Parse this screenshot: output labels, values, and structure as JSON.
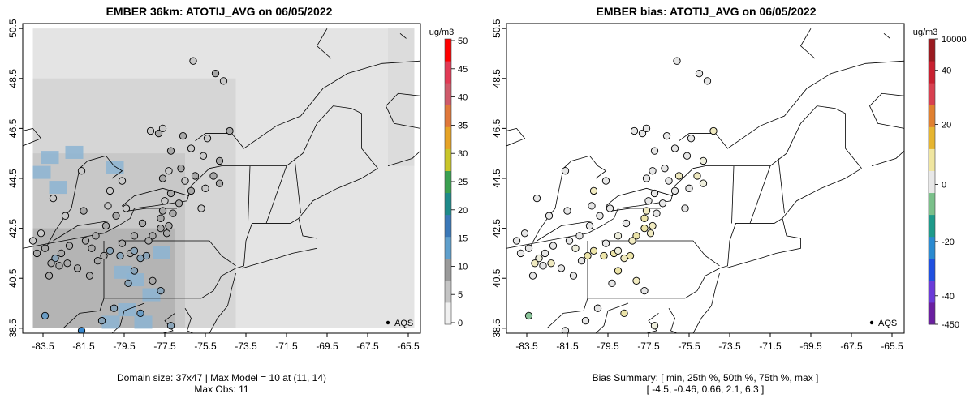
{
  "left_panel": {
    "title": "EMBER 36km: ATOTIJ_AVG on 06/05/2022",
    "caption_line1": "Domain size: 37x47 | Max Model = 10 at (11, 14)",
    "caption_line2": "Max Obs: 11",
    "legend_label": "AQS",
    "colorbar": {
      "unit": "ug/m3",
      "ticks": [
        "50",
        "45",
        "40",
        "35",
        "30",
        "25",
        "20",
        "15",
        "10",
        "5",
        "0"
      ],
      "colors": [
        "#f0f0f0",
        "#c4c4c4",
        "#9a9a9a",
        "#5f9fcc",
        "#3a78b8",
        "#1e8a8a",
        "#3aa050",
        "#c9c62a",
        "#e6a326",
        "#e0783a",
        "#cf5a6a",
        "#e23a55",
        "#ff0000"
      ]
    }
  },
  "right_panel": {
    "title": "EMBER bias: ATOTIJ_AVG on 06/05/2022",
    "caption_line1": "Bias Summary: [ min, 25th %, 50th %, 75th %, max ]",
    "caption_line2": "[ -4.5,  -0.46,  0.66,  2.1,  6.3 ]",
    "legend_label": "AQS",
    "colorbar": {
      "unit": "ug/m3",
      "ticks": [
        "10000",
        "40",
        "20",
        "0",
        "-20",
        "-40",
        "-450"
      ],
      "colors": [
        "#6a1fa0",
        "#6a3ad8",
        "#2050e0",
        "#2a8ad0",
        "#1e9a8a",
        "#7ac08a",
        "#e8e8e8",
        "#f0e6a0",
        "#e6b530",
        "#e08030",
        "#d84050",
        "#c82030",
        "#9a1a20"
      ]
    }
  },
  "axes": {
    "x_ticks": [
      "-83.5",
      "-81.5",
      "-79.5",
      "-77.5",
      "-75.5",
      "-73.5",
      "-71.5",
      "-69.5",
      "-67.5",
      "-65.5"
    ],
    "y_ticks": [
      "50.5",
      "48.5",
      "46.5",
      "44.5",
      "42.5",
      "40.5",
      "38.5"
    ]
  },
  "stations": [
    {
      "lon": -77.8,
      "lat": 46.3,
      "val": 4,
      "bias": 0.3
    },
    {
      "lon": -77.6,
      "lat": 46.5,
      "val": 3,
      "bias": 0.2
    },
    {
      "lon": -78.2,
      "lat": 46.4,
      "val": 3,
      "bias": -0.4
    },
    {
      "lon": -76.6,
      "lat": 46.2,
      "val": 4,
      "bias": 0.5
    },
    {
      "lon": -75.4,
      "lat": 46.1,
      "val": 3,
      "bias": 0.1
    },
    {
      "lon": -74.3,
      "lat": 46.4,
      "val": 4,
      "bias": 2.5
    },
    {
      "lon": -76.1,
      "lat": 49.2,
      "val": 3,
      "bias": 0.2
    },
    {
      "lon": -74.6,
      "lat": 48.4,
      "val": 3,
      "bias": -0.3
    },
    {
      "lon": -75.0,
      "lat": 48.7,
      "val": 4,
      "bias": 0.4
    },
    {
      "lon": -77.2,
      "lat": 45.6,
      "val": 4,
      "bias": 0.8
    },
    {
      "lon": -76.2,
      "lat": 45.7,
      "val": 3,
      "bias": 0.1
    },
    {
      "lon": -75.6,
      "lat": 45.4,
      "val": 3,
      "bias": 0.6
    },
    {
      "lon": -74.8,
      "lat": 45.2,
      "val": 4,
      "bias": 1.9
    },
    {
      "lon": -76.7,
      "lat": 44.9,
      "val": 4,
      "bias": -0.2
    },
    {
      "lon": -77.3,
      "lat": 44.8,
      "val": 3,
      "bias": 0.3
    },
    {
      "lon": -76.0,
      "lat": 44.6,
      "val": 5,
      "bias": 2.4
    },
    {
      "lon": -75.1,
      "lat": 44.6,
      "val": 4,
      "bias": 2.9
    },
    {
      "lon": -74.8,
      "lat": 44.3,
      "val": 4,
      "bias": 1.2
    },
    {
      "lon": -76.5,
      "lat": 44.4,
      "val": 3,
      "bias": -0.1
    },
    {
      "lon": -77.6,
      "lat": 44.5,
      "val": 4,
      "bias": 0.4
    },
    {
      "lon": -75.5,
      "lat": 44.1,
      "val": 3,
      "bias": 0.2
    },
    {
      "lon": -76.2,
      "lat": 44.0,
      "val": 4,
      "bias": 0.7
    },
    {
      "lon": -77.2,
      "lat": 43.9,
      "val": 4,
      "bias": -0.5
    },
    {
      "lon": -77.5,
      "lat": 43.6,
      "val": 3,
      "bias": 0.2
    },
    {
      "lon": -76.8,
      "lat": 43.5,
      "val": 4,
      "bias": 0.9
    },
    {
      "lon": -75.7,
      "lat": 43.3,
      "val": 3,
      "bias": -0.3
    },
    {
      "lon": -77.6,
      "lat": 43.2,
      "val": 4,
      "bias": 2.2
    },
    {
      "lon": -77.1,
      "lat": 43.1,
      "val": 4,
      "bias": 1.0
    },
    {
      "lon": -77.7,
      "lat": 42.9,
      "val": 5,
      "bias": 3.1
    },
    {
      "lon": -77.3,
      "lat": 42.6,
      "val": 4,
      "bias": 2.8
    },
    {
      "lon": -77.7,
      "lat": 42.5,
      "val": 5,
      "bias": 3.2
    },
    {
      "lon": -77.4,
      "lat": 42.3,
      "val": 4,
      "bias": 2.6
    },
    {
      "lon": -78.1,
      "lat": 42.2,
      "val": 5,
      "bias": 3.5
    },
    {
      "lon": -78.3,
      "lat": 42.0,
      "val": 5,
      "bias": 2.9
    },
    {
      "lon": -78.6,
      "lat": 42.7,
      "val": 4,
      "bias": 0.4
    },
    {
      "lon": -79.0,
      "lat": 42.2,
      "val": 4,
      "bias": 1.5
    },
    {
      "lon": -79.2,
      "lat": 41.5,
      "val": 5,
      "bias": 3.4
    },
    {
      "lon": -79.7,
      "lat": 41.4,
      "val": 6,
      "bias": 3.6
    },
    {
      "lon": -80.2,
      "lat": 41.6,
      "val": 6,
      "bias": 4.0
    },
    {
      "lon": -78.7,
      "lat": 41.3,
      "val": 6,
      "bias": 2.8
    },
    {
      "lon": -78.4,
      "lat": 41.4,
      "val": 7,
      "bias": 3.2
    },
    {
      "lon": -79.0,
      "lat": 41.6,
      "val": 6,
      "bias": 1.9
    },
    {
      "lon": -80.5,
      "lat": 41.4,
      "val": 5,
      "bias": 3.1
    },
    {
      "lon": -80.9,
      "lat": 42.2,
      "val": 4,
      "bias": 0.2
    },
    {
      "lon": -81.4,
      "lat": 42.0,
      "val": 5,
      "bias": -0.3
    },
    {
      "lon": -81.1,
      "lat": 41.7,
      "val": 5,
      "bias": 1.2
    },
    {
      "lon": -80.4,
      "lat": 42.6,
      "val": 4,
      "bias": 0.6
    },
    {
      "lon": -79.9,
      "lat": 43.0,
      "val": 4,
      "bias": -0.1
    },
    {
      "lon": -79.4,
      "lat": 43.3,
      "val": 3,
      "bias": 0.3
    },
    {
      "lon": -80.3,
      "lat": 43.4,
      "val": 3,
      "bias": -0.4
    },
    {
      "lon": -81.5,
      "lat": 43.2,
      "val": 4,
      "bias": 0.1
    },
    {
      "lon": -82.4,
      "lat": 43.0,
      "val": 3,
      "bias": 0.4
    },
    {
      "lon": -79.6,
      "lat": 44.4,
      "val": 3,
      "bias": 0.2
    },
    {
      "lon": -80.2,
      "lat": 44.0,
      "val": 3,
      "bias": 2.3
    },
    {
      "lon": -81.6,
      "lat": 44.8,
      "val": 3,
      "bias": -0.2
    },
    {
      "lon": -83.0,
      "lat": 43.7,
      "val": 3,
      "bias": 0.3
    },
    {
      "lon": -82.2,
      "lat": 41.8,
      "val": 5,
      "bias": -0.6
    },
    {
      "lon": -82.6,
      "lat": 41.5,
      "val": 5,
      "bias": 0.2
    },
    {
      "lon": -82.9,
      "lat": 41.3,
      "val": 6,
      "bias": 1.9
    },
    {
      "lon": -82.7,
      "lat": 41.0,
      "val": 5,
      "bias": -0.4
    },
    {
      "lon": -83.1,
      "lat": 41.1,
      "val": 5,
      "bias": 2.1
    },
    {
      "lon": -83.4,
      "lat": 41.7,
      "val": 4,
      "bias": -0.3
    },
    {
      "lon": -83.6,
      "lat": 42.3,
      "val": 3,
      "bias": 0.1
    },
    {
      "lon": -84.0,
      "lat": 42.0,
      "val": 3,
      "bias": -0.2
    },
    {
      "lon": -83.8,
      "lat": 41.5,
      "val": 4,
      "bias": 0.4
    },
    {
      "lon": -82.3,
      "lat": 41.1,
      "val": 5,
      "bias": 2.7
    },
    {
      "lon": -81.8,
      "lat": 40.9,
      "val": 5,
      "bias": 0.6
    },
    {
      "lon": -81.2,
      "lat": 40.6,
      "val": 4,
      "bias": -0.5
    },
    {
      "lon": -83.2,
      "lat": 40.6,
      "val": 4,
      "bias": 0.2
    },
    {
      "lon": -79.0,
      "lat": 40.8,
      "val": 6,
      "bias": 3.0
    },
    {
      "lon": -79.3,
      "lat": 40.3,
      "val": 6,
      "bias": 0.7
    },
    {
      "lon": -78.1,
      "lat": 40.4,
      "val": 5,
      "bias": 2.4
    },
    {
      "lon": -77.7,
      "lat": 40.0,
      "val": 6,
      "bias": 0.5
    },
    {
      "lon": -80.0,
      "lat": 39.3,
      "val": 7,
      "bias": -0.3
    },
    {
      "lon": -78.7,
      "lat": 39.1,
      "val": 8,
      "bias": 3.1
    },
    {
      "lon": -80.6,
      "lat": 38.8,
      "val": 6,
      "bias": 0.2
    },
    {
      "lon": -77.2,
      "lat": 38.6,
      "val": 6,
      "bias": 1.7
    },
    {
      "lon": -83.4,
      "lat": 39.0,
      "val": 9,
      "bias": -2.5
    },
    {
      "lon": -81.6,
      "lat": 38.4,
      "val": 11,
      "bias": -0.4
    },
    {
      "lon": -80.8,
      "lat": 41.2,
      "val": 5,
      "bias": 0.3
    },
    {
      "lon": -79.6,
      "lat": 41.9,
      "val": 4,
      "bias": 0.5
    }
  ],
  "tiles_note": "",
  "right_legend_label_unused": ""
}
